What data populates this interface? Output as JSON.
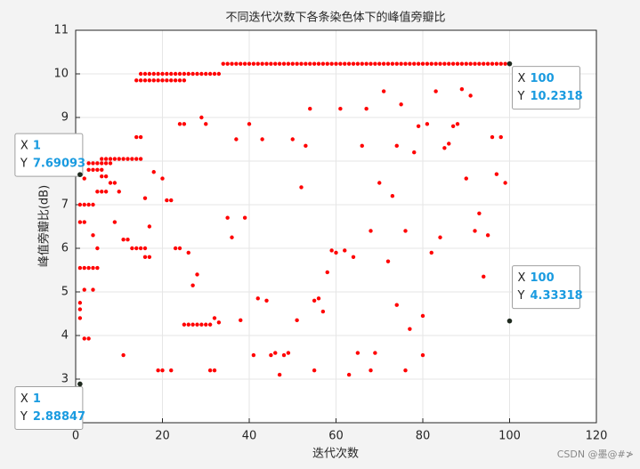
{
  "chart_data": {
    "type": "scatter",
    "title": "不同迭代次数下各条染色体下的峰值旁瓣比",
    "x_label": "迭代次数",
    "y_label": "峰值旁瓣比(dB)",
    "color": "#ff0000",
    "grid": true,
    "xlim": [
      0,
      120
    ],
    "ylim": [
      2,
      11
    ],
    "xticks": [
      0,
      20,
      40,
      60,
      80,
      100,
      120
    ],
    "yticks": [
      3,
      4,
      5,
      6,
      7,
      8,
      9,
      10,
      11
    ],
    "x": [
      34,
      35,
      36,
      37,
      38,
      39,
      40,
      41,
      42,
      43,
      44,
      45,
      46,
      47,
      48,
      49,
      50,
      51,
      52,
      53,
      54,
      55,
      56,
      57,
      58,
      59,
      60,
      61,
      62,
      63,
      64,
      65,
      66,
      67,
      68,
      69,
      70,
      71,
      72,
      73,
      74,
      75,
      76,
      77,
      78,
      79,
      80,
      81,
      82,
      83,
      84,
      85,
      86,
      87,
      88,
      89,
      90,
      91,
      92,
      93,
      94,
      95,
      96,
      97,
      98,
      99,
      100,
      15,
      16,
      17,
      18,
      19,
      20,
      21,
      22,
      23,
      24,
      25,
      26,
      27,
      28,
      29,
      30,
      31,
      32,
      33,
      14,
      15,
      16,
      17,
      18,
      19,
      20,
      21,
      22,
      23,
      24,
      25,
      1,
      1,
      1,
      1,
      1,
      2,
      3,
      2,
      1,
      2,
      3,
      4,
      5,
      1,
      2,
      1,
      2,
      3,
      4,
      2,
      3,
      4,
      5,
      6,
      3,
      4,
      5,
      6,
      7,
      8,
      6,
      7,
      8,
      9,
      10,
      11,
      12,
      13,
      14,
      15,
      5,
      6,
      7,
      8,
      9,
      10,
      6,
      7,
      4,
      5,
      4,
      9,
      11,
      12,
      13,
      14,
      15,
      16,
      17,
      16,
      14,
      15,
      16,
      17,
      18,
      11,
      19,
      20,
      22,
      20,
      21,
      22,
      23,
      24,
      24,
      25,
      25,
      26,
      27,
      28,
      29,
      30,
      31,
      32,
      33,
      31,
      32,
      26,
      27,
      28,
      29,
      30,
      35,
      36,
      37,
      38,
      39,
      40,
      41,
      42,
      43,
      44,
      45,
      46,
      47,
      48,
      49,
      50,
      51,
      52,
      53,
      54,
      55,
      56,
      55,
      57,
      58,
      59,
      60,
      61,
      62,
      63,
      64,
      65,
      66,
      67,
      68,
      68,
      69,
      70,
      71,
      72,
      73,
      74,
      74,
      75,
      76,
      76,
      77,
      78,
      79,
      80,
      80,
      81,
      82,
      83,
      84,
      85,
      86,
      87,
      88,
      89,
      90,
      91,
      92,
      93,
      94,
      95,
      96,
      97,
      98,
      99,
      100
    ],
    "values": [
      10.2318,
      10.2318,
      10.2318,
      10.2318,
      10.2318,
      10.2318,
      10.2318,
      10.2318,
      10.2318,
      10.2318,
      10.2318,
      10.2318,
      10.2318,
      10.2318,
      10.2318,
      10.2318,
      10.2318,
      10.2318,
      10.2318,
      10.2318,
      10.2318,
      10.2318,
      10.2318,
      10.2318,
      10.2318,
      10.2318,
      10.2318,
      10.2318,
      10.2318,
      10.2318,
      10.2318,
      10.2318,
      10.2318,
      10.2318,
      10.2318,
      10.2318,
      10.2318,
      10.2318,
      10.2318,
      10.2318,
      10.2318,
      10.2318,
      10.2318,
      10.2318,
      10.2318,
      10.2318,
      10.2318,
      10.2318,
      10.2318,
      10.2318,
      10.2318,
      10.2318,
      10.2318,
      10.2318,
      10.2318,
      10.2318,
      10.2318,
      10.2318,
      10.2318,
      10.2318,
      10.2318,
      10.2318,
      10.2318,
      10.2318,
      10.2318,
      10.2318,
      10.2318,
      10.0,
      10.0,
      10.0,
      10.0,
      10.0,
      10.0,
      10.0,
      10.0,
      10.0,
      10.0,
      10.0,
      10.0,
      10.0,
      10.0,
      10.0,
      10.0,
      10.0,
      10.0,
      10.0,
      9.85,
      9.85,
      9.85,
      9.85,
      9.85,
      9.85,
      9.85,
      9.85,
      9.85,
      9.85,
      9.85,
      9.85,
      7.69093,
      2.88847,
      4.6,
      4.4,
      4.75,
      3.93,
      3.93,
      5.05,
      5.55,
      5.55,
      5.55,
      5.55,
      5.55,
      6.6,
      6.6,
      7.0,
      7.0,
      7.0,
      7.0,
      7.6,
      7.8,
      7.8,
      7.8,
      7.8,
      7.95,
      7.95,
      7.95,
      7.95,
      7.95,
      7.95,
      8.05,
      8.05,
      8.05,
      8.05,
      8.05,
      8.05,
      8.05,
      8.05,
      8.05,
      8.05,
      7.3,
      7.3,
      7.3,
      7.5,
      7.5,
      7.3,
      7.65,
      7.65,
      6.3,
      6.0,
      5.05,
      6.6,
      6.2,
      6.2,
      6.0,
      6.0,
      6.0,
      6.0,
      5.8,
      5.8,
      8.55,
      8.55,
      7.15,
      6.5,
      7.75,
      3.55,
      3.2,
      3.2,
      3.2,
      7.6,
      7.1,
      7.1,
      6.0,
      6.0,
      8.85,
      8.85,
      4.25,
      4.25,
      4.25,
      4.25,
      4.25,
      4.25,
      4.25,
      4.4,
      4.3,
      3.2,
      3.2,
      5.9,
      5.15,
      5.4,
      9.0,
      8.85,
      6.7,
      6.25,
      8.5,
      4.35,
      6.7,
      8.85,
      3.55,
      4.85,
      8.5,
      4.8,
      3.55,
      3.6,
      3.1,
      3.55,
      3.6,
      8.5,
      4.35,
      7.4,
      8.35,
      9.2,
      4.8,
      4.85,
      3.2,
      4.55,
      5.45,
      5.95,
      5.9,
      9.2,
      5.95,
      3.1,
      5.8,
      3.6,
      8.35,
      9.2,
      6.4,
      3.2,
      3.6,
      7.5,
      9.6,
      5.7,
      7.2,
      8.35,
      4.7,
      9.3,
      6.4,
      3.2,
      4.15,
      8.2,
      8.8,
      4.45,
      3.55,
      8.85,
      5.9,
      9.6,
      6.25,
      8.3,
      8.4,
      8.8,
      8.85,
      9.65,
      7.6,
      9.5,
      6.4,
      6.8,
      5.35,
      6.3,
      8.55,
      7.7,
      8.55,
      7.5,
      4.33318
    ],
    "datatip_x_key": "X",
    "datatip_y_key": "Y",
    "datatips": [
      {
        "x": 1,
        "y": 7.69093
      },
      {
        "x": 100,
        "y": 10.2318
      },
      {
        "x": 100,
        "y": 4.33318
      },
      {
        "x": 1,
        "y": 2.88847
      }
    ],
    "watermark": "CSDN @墨@#≯"
  }
}
